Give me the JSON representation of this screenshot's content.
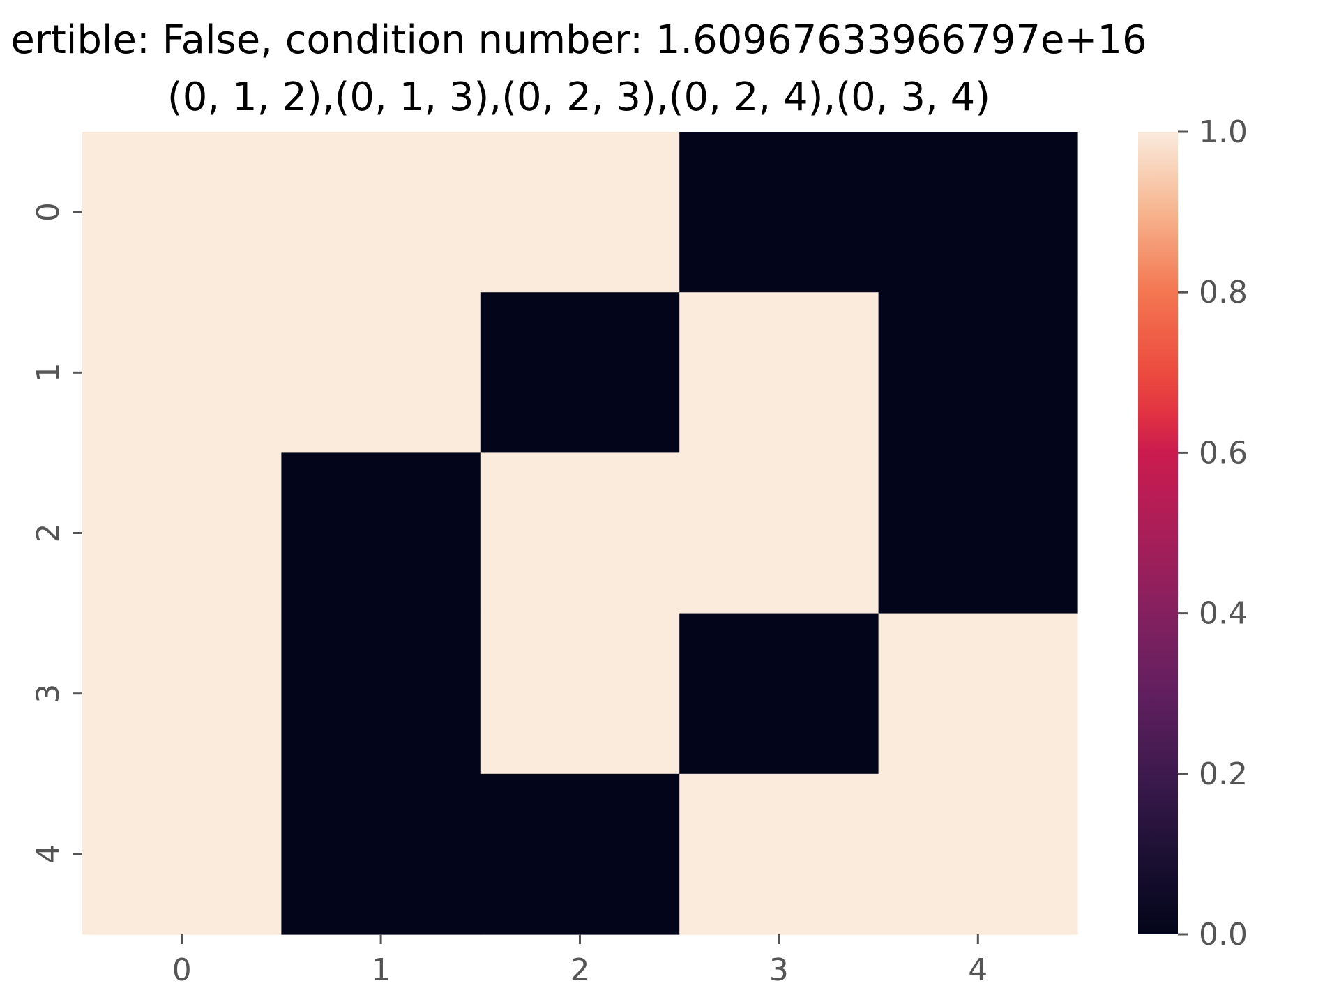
{
  "chart_data": {
    "type": "heatmap",
    "title_lines": [
      "ertible: False, condition number: 1.60967633966797e+16",
      "(0, 1, 2),(0, 1, 3),(0, 2, 3),(0, 2, 4),(0, 3, 4)"
    ],
    "x_categories": [
      "0",
      "1",
      "2",
      "3",
      "4"
    ],
    "y_categories": [
      "0",
      "1",
      "2",
      "3",
      "4"
    ],
    "matrix": [
      [
        1,
        1,
        1,
        0,
        0
      ],
      [
        1,
        1,
        0,
        1,
        0
      ],
      [
        1,
        0,
        1,
        1,
        0
      ],
      [
        1,
        0,
        1,
        0,
        1
      ],
      [
        1,
        0,
        0,
        1,
        1
      ]
    ],
    "colorbar": {
      "range": [
        0.0,
        1.0
      ],
      "ticks": [
        "0.0",
        "0.2",
        "0.4",
        "0.6",
        "0.8",
        "1.0"
      ],
      "colormap": "rocket"
    },
    "colors": {
      "low": "#03051a",
      "high": "#faebdd"
    },
    "grid": false
  }
}
